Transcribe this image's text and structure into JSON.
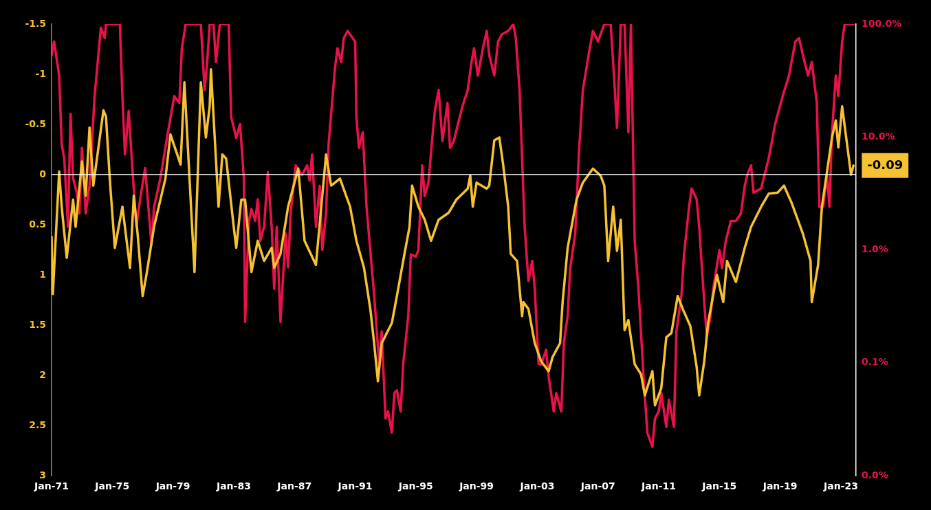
{
  "chart_data": {
    "type": "line",
    "xlim": [
      "1971-01",
      "2024-01"
    ],
    "xticks": [
      {
        "value": "1971-01",
        "label": "Jan-71"
      },
      {
        "value": "1975-01",
        "label": "Jan-75"
      },
      {
        "value": "1979-01",
        "label": "Jan-79"
      },
      {
        "value": "1983-01",
        "label": "Jan-83"
      },
      {
        "value": "1987-01",
        "label": "Jan-87"
      },
      {
        "value": "1991-01",
        "label": "Jan-91"
      },
      {
        "value": "1995-01",
        "label": "Jan-95"
      },
      {
        "value": "1999-01",
        "label": "Jan-99"
      },
      {
        "value": "2003-01",
        "label": "Jan-03"
      },
      {
        "value": "2007-01",
        "label": "Jan-07"
      },
      {
        "value": "2011-01",
        "label": "Jan-11"
      },
      {
        "value": "2015-01",
        "label": "Jan-15"
      },
      {
        "value": "2019-01",
        "label": "Jan-19"
      },
      {
        "value": "2023-01",
        "label": "Jan-23"
      }
    ],
    "ylim": [
      3,
      -1.5
    ],
    "yticks": [
      -1.5,
      -1,
      -0.5,
      0,
      0.5,
      1,
      1.5,
      2,
      2.5,
      3
    ],
    "y2lim": [
      0.01,
      100
    ],
    "y2ticks": [
      {
        "value": 100,
        "label": "100.0%"
      },
      {
        "value": 10,
        "label": "10.0%"
      },
      {
        "value": 1,
        "label": "1.0%"
      },
      {
        "value": 0.1,
        "label": "0.1%"
      },
      {
        "value": 0.01,
        "label": "0.0%"
      }
    ],
    "log": "y2",
    "marker": "none",
    "line_style": "solid",
    "ref_lines": [
      {
        "axis": "y",
        "value": 0,
        "label": null,
        "color": "#ffffff"
      }
    ],
    "annotations": [
      {
        "text": "-0.09",
        "x": "2023-11",
        "y": -0.09
      }
    ],
    "series": [
      {
        "color": "#f5c232",
        "axis": "y",
        "x": [
          "1971-01",
          "1971-02",
          "1971-07",
          "1971-09",
          "1972-01",
          "1972-06",
          "1972-08",
          "1973-01",
          "1973-04",
          "1973-07",
          "1973-10",
          "1974-06",
          "1974-08",
          "1974-11",
          "1975-03",
          "1975-09",
          "1976-03",
          "1976-06",
          "1976-09",
          "1977-01",
          "1977-04",
          "1977-10",
          "1978-07",
          "1978-11",
          "1979-07",
          "1979-10",
          "1980-06",
          "1980-11",
          "1981-03",
          "1981-06",
          "1981-07",
          "1982-01",
          "1982-04",
          "1982-07",
          "1983-01",
          "1983-03",
          "1983-07",
          "1983-10",
          "1984-03",
          "1984-08",
          "1985-01",
          "1985-07",
          "1985-09",
          "1986-02",
          "1986-08",
          "1987-04",
          "1987-09",
          "1988-06",
          "1989-02",
          "1989-06",
          "1990-01",
          "1990-09",
          "1991-02",
          "1991-08",
          "1992-01",
          "1992-04",
          "1992-07",
          "1992-10",
          "1993-06",
          "1993-10",
          "1994-04",
          "1994-08",
          "1994-10",
          "1995-03",
          "1995-08",
          "1996-01",
          "1996-07",
          "1997-03",
          "1997-09",
          "1998-06",
          "1998-08",
          "1998-10",
          "1999-01",
          "1999-09",
          "1999-11",
          "2000-03",
          "2000-07",
          "2000-10",
          "2001-02",
          "2001-04",
          "2001-09",
          "2002-01",
          "2002-02",
          "2002-06",
          "2002-11",
          "2003-04",
          "2003-10",
          "2004-01",
          "2004-07",
          "2004-09",
          "2005-01",
          "2005-08",
          "2006-01",
          "2006-09",
          "2007-03",
          "2007-06",
          "2007-09",
          "2008-01",
          "2008-04",
          "2008-07",
          "2008-10",
          "2009-01",
          "2009-06",
          "2009-11",
          "2010-02",
          "2010-08",
          "2010-10",
          "2011-03",
          "2011-07",
          "2011-11",
          "2012-04",
          "2012-08",
          "2013-02",
          "2013-07",
          "2013-09",
          "2014-01",
          "2014-04",
          "2014-11",
          "2015-04",
          "2015-07",
          "2016-02",
          "2016-09",
          "2017-02",
          "2017-10",
          "2018-04",
          "2018-11",
          "2019-04",
          "2019-10",
          "2020-07",
          "2021-01",
          "2021-02",
          "2021-07",
          "2021-10",
          "2022-06",
          "2022-09",
          "2022-11",
          "2023-02",
          "2023-09",
          "2023-11"
        ],
        "values": [
          0.62,
          1.19,
          -0.03,
          0.32,
          0.83,
          0.25,
          0.52,
          -0.13,
          0.21,
          -0.47,
          0.11,
          -0.64,
          -0.58,
          0.04,
          0.73,
          0.32,
          0.93,
          0.21,
          0.59,
          1.21,
          1.0,
          0.52,
          0.04,
          -0.4,
          -0.1,
          -0.92,
          0.97,
          -0.92,
          -0.37,
          -0.68,
          -1.05,
          0.32,
          -0.2,
          -0.16,
          0.52,
          0.73,
          0.25,
          0.25,
          0.97,
          0.66,
          0.86,
          0.73,
          0.93,
          0.79,
          0.32,
          -0.06,
          0.66,
          0.9,
          -0.2,
          0.11,
          0.04,
          0.32,
          0.66,
          0.93,
          1.34,
          1.68,
          2.06,
          1.68,
          1.48,
          1.21,
          0.79,
          0.52,
          0.11,
          0.32,
          0.45,
          0.66,
          0.45,
          0.38,
          0.25,
          0.14,
          0.01,
          0.32,
          0.08,
          0.14,
          0.11,
          -0.34,
          -0.37,
          -0.1,
          0.32,
          0.79,
          0.86,
          1.41,
          1.27,
          1.34,
          1.68,
          1.86,
          1.96,
          1.82,
          1.68,
          1.27,
          0.73,
          0.25,
          0.08,
          -0.06,
          0.01,
          0.11,
          0.86,
          0.32,
          0.76,
          0.45,
          1.55,
          1.45,
          1.89,
          1.99,
          2.2,
          1.96,
          2.3,
          2.13,
          1.62,
          1.58,
          1.21,
          1.34,
          1.51,
          1.92,
          2.2,
          1.86,
          1.48,
          1.0,
          1.27,
          0.86,
          1.07,
          0.73,
          0.52,
          0.32,
          0.19,
          0.18,
          0.11,
          0.28,
          0.59,
          0.86,
          1.27,
          0.9,
          0.32,
          -0.37,
          -0.54,
          -0.27,
          -0.68,
          0.0,
          -0.09
        ]
      },
      {
        "color": "#e8124a",
        "axis": "y2",
        "x": [
          "1971-01",
          "1971-03",
          "1971-07",
          "1971-09",
          "1971-11",
          "1972-02",
          "1972-04",
          "1972-06",
          "1972-09",
          "1972-11",
          "1973-01",
          "1973-04",
          "1973-07",
          "1973-11",
          "1974-04",
          "1974-07",
          "1974-08",
          "1975-07",
          "1975-09",
          "1975-11",
          "1976-02",
          "1976-04",
          "1976-08",
          "1976-11",
          "1977-03",
          "1977-08",
          "1977-10",
          "1978-03",
          "1978-09",
          "1979-02",
          "1979-06",
          "1979-08",
          "1979-11",
          "1980-11",
          "1981-02",
          "1981-04",
          "1981-06",
          "1981-09",
          "1981-11",
          "1982-02",
          "1982-09",
          "1982-11",
          "1983-03",
          "1983-06",
          "1983-09",
          "1983-10",
          "1984-01",
          "1984-03",
          "1984-06",
          "1984-08",
          "1984-10",
          "1985-01",
          "1985-04",
          "1985-07",
          "1985-09",
          "1985-11",
          "1986-02",
          "1986-06",
          "1986-08",
          "1986-10",
          "1987-02",
          "1987-07",
          "1987-11",
          "1988-01",
          "1988-03",
          "1988-06",
          "1988-09",
          "1988-11",
          "1989-02",
          "1989-04",
          "1989-09",
          "1989-11",
          "1990-02",
          "1990-04",
          "1990-07",
          "1991-01",
          "1991-02",
          "1991-04",
          "1991-07",
          "1991-10",
          "1992-04",
          "1992-08",
          "1992-10",
          "1993-01",
          "1993-03",
          "1993-06",
          "1993-08",
          "1993-10",
          "1994-01",
          "1994-03",
          "1994-07",
          "1994-09",
          "1995-01",
          "1995-03",
          "1995-06",
          "1995-08",
          "1995-11",
          "1996-02",
          "1996-04",
          "1996-07",
          "1996-10",
          "1997-02",
          "1997-04",
          "1997-07",
          "1997-11",
          "1998-02",
          "1998-06",
          "1998-09",
          "1998-11",
          "1999-02",
          "1999-06",
          "1999-09",
          "1999-11",
          "2000-03",
          "2000-06",
          "2000-09",
          "2001-02",
          "2001-06",
          "2001-08",
          "2001-11",
          "2002-03",
          "2002-06",
          "2002-09",
          "2002-11",
          "2003-02",
          "2003-04",
          "2003-08",
          "2003-10",
          "2004-02",
          "2004-04",
          "2004-08",
          "2004-10",
          "2005-01",
          "2005-03",
          "2005-07",
          "2005-10",
          "2006-01",
          "2006-06",
          "2006-09",
          "2007-01",
          "2007-06",
          "2007-11",
          "2008-02",
          "2008-04",
          "2008-07",
          "2008-10",
          "2009-01",
          "2009-03",
          "2009-06",
          "2009-09",
          "2010-01",
          "2010-04",
          "2010-08",
          "2010-10",
          "2011-01",
          "2011-03",
          "2011-07",
          "2011-09",
          "2012-01",
          "2012-03",
          "2012-07",
          "2012-09",
          "2013-01",
          "2013-03",
          "2013-07",
          "2013-09",
          "2014-01",
          "2014-03",
          "2014-06",
          "2014-08",
          "2015-01",
          "2015-03",
          "2015-06",
          "2015-10",
          "2016-02",
          "2016-06",
          "2016-09",
          "2016-11",
          "2017-02",
          "2017-04",
          "2017-10",
          "2018-04",
          "2018-07",
          "2018-09",
          "2019-03",
          "2019-08",
          "2020-01",
          "2020-04",
          "2020-07",
          "2020-11",
          "2021-02",
          "2021-06",
          "2021-08",
          "2021-11",
          "2022-02",
          "2022-04",
          "2022-06",
          "2022-09",
          "2022-11",
          "2023-02",
          "2023-04",
          "2023-11"
        ],
        "values": [
          53,
          70,
          35,
          8.6,
          6.5,
          1.6,
          16,
          4.3,
          3.2,
          2.1,
          8,
          2.1,
          3.7,
          23,
          93,
          75,
          100,
          100,
          23,
          7,
          17,
          7.5,
          1.6,
          2.8,
          5.3,
          1.1,
          2.4,
          4.3,
          11,
          23,
          20,
          61,
          100,
          100,
          26,
          46,
          100,
          100,
          46,
          100,
          100,
          15,
          9.8,
          13,
          4.3,
          0.23,
          1.8,
          2.3,
          1.8,
          2.8,
          1.2,
          1.6,
          4.9,
          1.6,
          0.45,
          1.6,
          0.23,
          1.4,
          0.7,
          2.1,
          5.6,
          4.6,
          5.6,
          4.1,
          7,
          1.6,
          3.7,
          1.0,
          2.1,
          8.6,
          40,
          61,
          46,
          75,
          87,
          70,
          15,
          8,
          11,
          2.4,
          0.4,
          0.098,
          0.19,
          0.032,
          0.037,
          0.024,
          0.054,
          0.057,
          0.037,
          0.098,
          0.26,
          0.91,
          0.87,
          1.0,
          5.6,
          3.0,
          4.0,
          9.8,
          17,
          26,
          9.2,
          20,
          8.0,
          9.2,
          14,
          19,
          26,
          46,
          61,
          35,
          61,
          87,
          53,
          35,
          70,
          81,
          87,
          100,
          75,
          26,
          1.6,
          0.53,
          0.8,
          0.45,
          0.098,
          0.096,
          0.13,
          0.075,
          0.037,
          0.054,
          0.037,
          0.15,
          0.26,
          0.69,
          1.4,
          7.5,
          26,
          57,
          87,
          70,
          100,
          100,
          30,
          12,
          100,
          100,
          11,
          100,
          1.2,
          0.45,
          0.075,
          0.024,
          0.018,
          0.032,
          0.037,
          0.054,
          0.027,
          0.047,
          0.027,
          0.19,
          0.4,
          0.91,
          2.4,
          3.5,
          2.8,
          1.6,
          0.34,
          0.17,
          0.26,
          0.45,
          1.0,
          0.69,
          1.2,
          1.8,
          1.8,
          2.1,
          3.7,
          4.6,
          5.6,
          3.2,
          3.5,
          6.5,
          9.8,
          13,
          23,
          35,
          70,
          75,
          53,
          35,
          46,
          20,
          2.4,
          2.4,
          4.6,
          2.4,
          11,
          35,
          23,
          70,
          100,
          100
        ]
      }
    ]
  }
}
